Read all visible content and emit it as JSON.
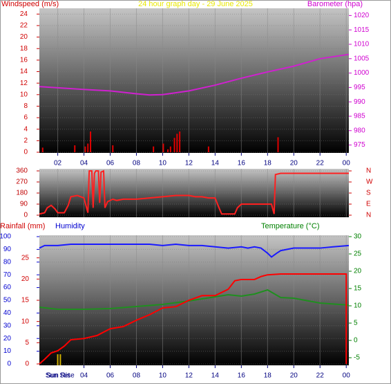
{
  "chart_data": [
    {
      "type": "combo",
      "title": "24 hour graph day - 29 June 2025",
      "y_label": "Windspeed (m/s)",
      "y2_label": "Barometer (hpa)",
      "y_color": "#d00000",
      "y2_color": "#d000d0",
      "grid": true,
      "xlim": [
        0.6,
        24.2
      ],
      "xticks": [
        {
          "value": 2,
          "label": "02"
        },
        {
          "value": 4,
          "label": "04"
        },
        {
          "value": 6,
          "label": "06"
        },
        {
          "value": 8,
          "label": "08"
        },
        10,
        12,
        14,
        16,
        18,
        20,
        22,
        {
          "value": 24,
          "label": "00"
        }
      ],
      "ylim": [
        0,
        25
      ],
      "yticks": [
        0,
        2,
        4,
        6,
        8,
        10,
        12,
        14,
        16,
        18,
        20,
        22,
        24
      ],
      "y2lim": [
        972.5,
        1022.5
      ],
      "y2ticks": [
        975,
        980,
        985,
        990,
        995,
        1000,
        1005,
        1010,
        1015,
        1020
      ],
      "series": [
        {
          "type": "bar",
          "color": "#e00000",
          "x": [
            0.85,
            3.3,
            4.1,
            4.3,
            4.5,
            6.2,
            9.3,
            10.05,
            10.4,
            10.6,
            10.9,
            11.1,
            11.3,
            13.5,
            18.8
          ],
          "values": [
            0.8,
            1.2,
            1.0,
            1.5,
            3.6,
            1.2,
            1.0,
            1.5,
            0.5,
            1.0,
            2.5,
            3.2,
            3.6,
            1.0,
            2.6
          ]
        },
        {
          "type": "line",
          "axis": "y2",
          "color": "#d020d0",
          "x": [
            0.6,
            2,
            4,
            6,
            8,
            9,
            10,
            12,
            14,
            16,
            18,
            20,
            22,
            24.2
          ],
          "values": [
            995.3,
            994.9,
            994.3,
            993.8,
            992.8,
            992.4,
            992.5,
            993.8,
            995.8,
            998.2,
            1000.4,
            1002.4,
            1005,
            1006.5
          ]
        }
      ]
    },
    {
      "type": "line",
      "y_color": "#c00000",
      "y2_color": "#d00000",
      "grid": true,
      "xlim": [
        0.6,
        24.2
      ],
      "ylim": [
        0,
        360
      ],
      "yticks": [
        0,
        90,
        180,
        270,
        360
      ],
      "y2lim": [
        0,
        360
      ],
      "y2ticks": [
        {
          "value": 360,
          "label": "N"
        },
        {
          "value": 270,
          "label": "W"
        },
        {
          "value": 180,
          "label": "S"
        },
        {
          "value": 90,
          "label": "E"
        },
        {
          "value": 0,
          "label": "N"
        }
      ],
      "series": [
        {
          "type": "line",
          "color": "#ff2020",
          "x": [
            0.6,
            1.0,
            1.2,
            1.5,
            1.8,
            2.0,
            2.5,
            2.8,
            3.0,
            3.5,
            4.0,
            4.3,
            4.4,
            4.6,
            4.7,
            4.8,
            4.9,
            5.1,
            5.2,
            5.3,
            5.5,
            5.6,
            5.8,
            6.2,
            6.5,
            7,
            8,
            9,
            10,
            11,
            12,
            12.5,
            13,
            13.5,
            14,
            14.3,
            14.5,
            15,
            15.5,
            15.7,
            16,
            17,
            18,
            18.3,
            18.5,
            18.6,
            19,
            20,
            22,
            24.2
          ],
          "values": [
            10,
            20,
            60,
            80,
            50,
            20,
            20,
            80,
            150,
            160,
            140,
            20,
            360,
            360,
            60,
            340,
            360,
            360,
            100,
            350,
            360,
            60,
            110,
            130,
            120,
            130,
            130,
            140,
            150,
            160,
            160,
            150,
            150,
            140,
            140,
            60,
            10,
            10,
            10,
            60,
            90,
            90,
            90,
            90,
            10,
            330,
            340,
            340,
            340,
            340
          ]
        }
      ]
    },
    {
      "type": "line",
      "y_label": "Humidity",
      "y2_label": "Temperature (°C)",
      "y3_label": "Rainfall (mm)",
      "y_color": "#0000d0",
      "y2_color": "#008000",
      "y3_color": "#d00000",
      "grid": true,
      "xlim": [
        0.6,
        24.2
      ],
      "xticks": [
        {
          "value": 4,
          "label": "04"
        },
        {
          "value": 6,
          "label": "06"
        },
        {
          "value": 8,
          "label": "08"
        },
        10,
        12,
        14,
        16,
        18,
        20,
        22,
        {
          "value": 24,
          "label": "00"
        }
      ],
      "annotations": [
        {
          "x": 2.0,
          "text": "Sun Set"
        },
        {
          "x": 2.2,
          "text": "Sun Rise"
        }
      ],
      "ylim": [
        0,
        100
      ],
      "yticks": [
        0,
        10,
        20,
        30,
        40,
        50,
        60,
        70,
        80,
        90,
        100
      ],
      "y2lim": [
        -6.8,
        30
      ],
      "y2ticks": [
        -5,
        0,
        5,
        10,
        15,
        20,
        25,
        30
      ],
      "y3lim": [
        0,
        30
      ],
      "y3ticks": [
        0,
        5,
        10,
        15,
        20,
        25
      ],
      "series": [
        {
          "type": "line",
          "color": "#1a1aff",
          "x": [
            0.6,
            1,
            2,
            3,
            4,
            5,
            6,
            7,
            8,
            9,
            10,
            11,
            12,
            13,
            14,
            15,
            16,
            16.5,
            17,
            17.5,
            18,
            18.3,
            18.7,
            19,
            20,
            21,
            22,
            23,
            24.2
          ],
          "values": [
            91,
            93,
            93,
            94,
            94,
            94,
            94,
            94,
            94,
            94,
            93,
            94,
            93,
            93,
            92,
            91,
            92,
            91,
            92,
            91,
            87,
            84,
            87,
            89,
            91,
            91,
            91,
            92,
            93
          ]
        },
        {
          "type": "line",
          "axis": "y2",
          "color": "#1f8f1f",
          "x": [
            0.6,
            2,
            4,
            6,
            8,
            10,
            12,
            14,
            15,
            16,
            17,
            18,
            19,
            20,
            22,
            24.2
          ],
          "values": [
            9.6,
            9,
            9,
            9.2,
            9.8,
            10.4,
            11.4,
            12.6,
            13.2,
            12.8,
            13.4,
            14.6,
            12.4,
            12.2,
            10.8,
            10.2
          ]
        },
        {
          "type": "line",
          "axis": "y3",
          "color": "#ff0000",
          "x": [
            0.6,
            1,
            1.5,
            2,
            2.5,
            3,
            4,
            5,
            6,
            7,
            8,
            9,
            10,
            11,
            12,
            13,
            14,
            15,
            15.5,
            16,
            17,
            17.5,
            18,
            19,
            20,
            22,
            24,
            24
          ],
          "values": [
            0,
            1.1,
            2.6,
            3.1,
            4.2,
            5.7,
            6,
            6.7,
            8.3,
            8.8,
            10.3,
            11.6,
            13.2,
            13.5,
            15,
            16.1,
            16.1,
            17.6,
            19.6,
            19.9,
            19.9,
            20.6,
            21,
            21.2,
            21.2,
            21.2,
            21.2,
            0
          ]
        }
      ]
    }
  ]
}
